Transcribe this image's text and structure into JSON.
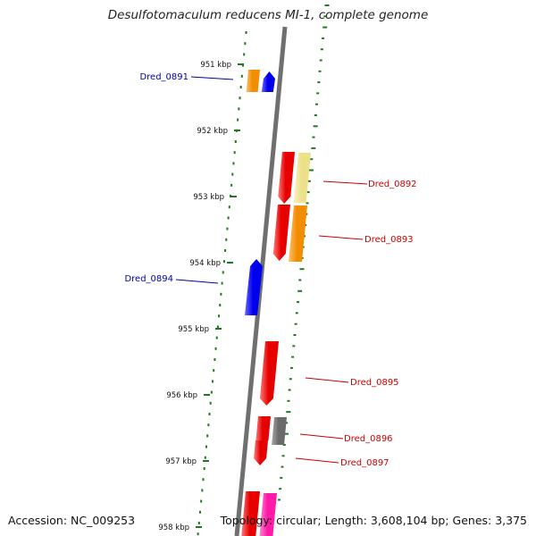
{
  "title": "Desulfotomaculum reducens MI-1, complete genome",
  "accession": "Accession: NC_009253",
  "topology": "Topology: circular; Length: 3,608,104 bp; Genes: 3,375",
  "colors": {
    "backbone": "#6f6f6f",
    "scale_ticks": "#1f7a1f",
    "forward_label": "#cc0000",
    "reverse_label": "#0000aa"
  },
  "scale_ticks": [
    "951 kbp",
    "952 kbp",
    "953 kbp",
    "954 kbp",
    "955 kbp",
    "956 kbp",
    "957 kbp",
    "958 kbp"
  ],
  "genes": [
    {
      "name": "Dred_0891",
      "strand": "reverse"
    },
    {
      "name": "Dred_0892",
      "strand": "forward"
    },
    {
      "name": "Dred_0893",
      "strand": "forward"
    },
    {
      "name": "Dred_0894",
      "strand": "reverse"
    },
    {
      "name": "Dred_0895",
      "strand": "forward"
    },
    {
      "name": "Dred_0896",
      "strand": "forward"
    },
    {
      "name": "Dred_0897",
      "strand": "forward"
    }
  ]
}
